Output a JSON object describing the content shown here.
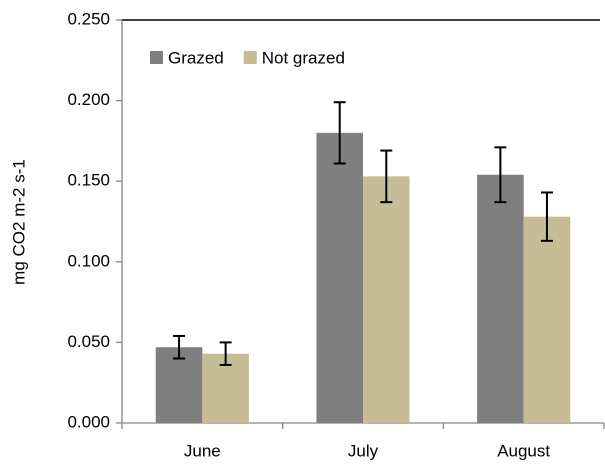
{
  "chart_data": {
    "type": "bar",
    "y_label": "mg CO2 m-2 s-1",
    "categories": [
      "June",
      "July",
      "August"
    ],
    "series": [
      {
        "name": "Grazed",
        "color": "#7f7f7f",
        "values": [
          0.047,
          0.18,
          0.154
        ],
        "errors": [
          0.007,
          0.019,
          0.017
        ]
      },
      {
        "name": "Not grazed",
        "color": "#c6bd97",
        "values": [
          0.043,
          0.153,
          0.128
        ],
        "errors": [
          0.007,
          0.016,
          0.015
        ]
      }
    ],
    "ylim": [
      0,
      0.25
    ],
    "yticks": [
      {
        "value": 0,
        "label": "0.000"
      },
      {
        "value": 0.05,
        "label": "0.050"
      },
      {
        "value": 0.1,
        "label": "0.100"
      },
      {
        "value": 0.15,
        "label": "0.150"
      },
      {
        "value": 0.2,
        "label": "0.200"
      },
      {
        "value": 0.25,
        "label": "0.250"
      }
    ],
    "grid": false,
    "legend": "top-left"
  }
}
